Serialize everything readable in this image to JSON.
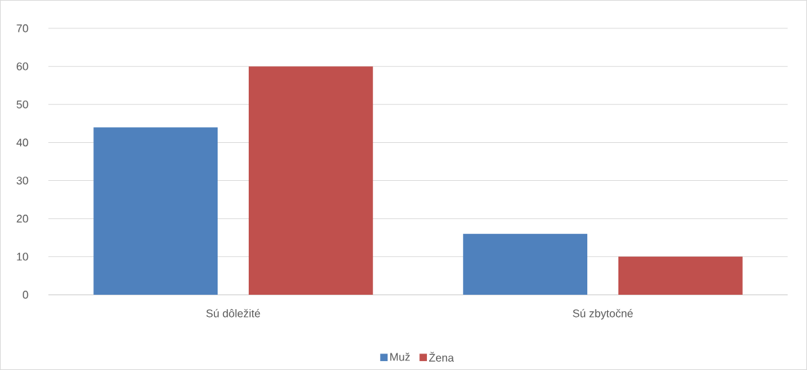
{
  "chart_data": {
    "type": "bar",
    "categories": [
      "Sú dôležité",
      "Sú zbytočné"
    ],
    "series": [
      {
        "name": "Muž",
        "color": "#4f81bd",
        "values": [
          44,
          16
        ]
      },
      {
        "name": "Žena",
        "color": "#c0504d",
        "values": [
          60,
          10
        ]
      }
    ],
    "ylim": [
      0,
      70
    ],
    "yticks": [
      0,
      10,
      20,
      30,
      40,
      50,
      60,
      70
    ],
    "grid": "y",
    "legend": "bottom"
  }
}
